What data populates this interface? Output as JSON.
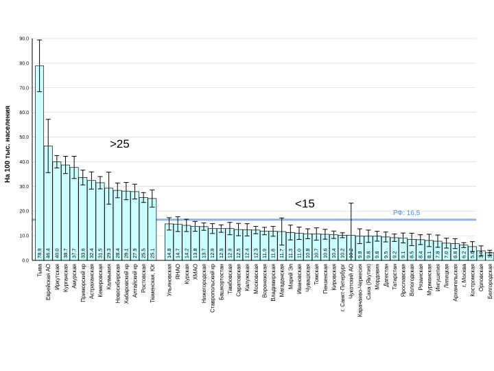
{
  "chart_data": {
    "type": "bar",
    "ylabel": "На 100 тыс. населения",
    "ylim": [
      0,
      90
    ],
    "yticks": [
      "0.0",
      "10.0",
      "20.0",
      "30.0",
      "40.0",
      "50.0",
      "60.0",
      "70.0",
      "80.0",
      "90.0"
    ],
    "grid": true,
    "bar_color": "#ccffff",
    "reference_line": {
      "value": 16.5,
      "label": "РФ: 16,5",
      "color": "#8fb4e0"
    },
    "annotations": [
      {
        "text": ">25",
        "near_value": 47
      },
      {
        "text": "<15",
        "near_value": 22
      }
    ],
    "groups": [
      {
        "categories": [
          "Тыва",
          "Еврейская АО",
          "Иркутская",
          "Курганская",
          "Амурская",
          "Приморский кр",
          "Астраханская",
          "Кемеровская",
          "Калмыкия",
          "Новосибирская",
          "Хабаровский кр",
          "Алтайский кр",
          "Ростовская",
          "Тюменская, Юг"
        ],
        "values": [
          78.9,
          46.4,
          40.0,
          38.7,
          37.7,
          33.6,
          32.4,
          31.5,
          29.3,
          28.4,
          28.1,
          27.9,
          25.5,
          25.1
        ],
        "value_labels": [
          "78.9",
          "46.4",
          "40.0",
          "38.7",
          "37.7",
          "33.6",
          "32.4",
          "31.5",
          "29.3",
          "28.4",
          "28.1",
          "27.9",
          "25.5",
          "25.1"
        ],
        "errors": [
          10.5,
          10.8,
          2.5,
          3.5,
          4.5,
          3.0,
          3.5,
          2.5,
          6.5,
          3.0,
          3.5,
          3.0,
          2.0,
          3.5
        ]
      },
      {
        "categories": [
          "Ульяновская",
          "ЯНАО",
          "Курская",
          "ХМАО",
          "Нижегородская",
          "Ставропольский кр",
          "Башкортостан",
          "Тамбовская",
          "Саратовская",
          "Калужская",
          "Московская",
          "Воронежская",
          "Владимирская",
          "Магаданская",
          "Марий Эл",
          "Ивановская",
          "Чувашская",
          "Томская",
          "Пензенская",
          "Кировская",
          "г. Санкт-Петербург",
          "Чукотский АО",
          "Карачаево-Черкесия",
          "Саха (Якутия)",
          "Мордовия",
          "Дагестан",
          "Татарстан",
          "Ярославская",
          "Вологодская",
          "Рязанская",
          "Мурманская",
          "Ингушетия",
          "Липецкая",
          "Архангельская",
          "г. Москва",
          "Костромская",
          "Орловская",
          "Белгородская"
        ],
        "values": [
          14.8,
          14.7,
          14.2,
          13.8,
          13.7,
          12.9,
          12.9,
          12.9,
          12.5,
          12.4,
          12.3,
          11.9,
          11.8,
          11.7,
          11.3,
          11.0,
          10.8,
          10.7,
          10.6,
          10.4,
          10.2,
          10.2,
          9.8,
          9.8,
          9.8,
          9.5,
          9.2,
          9.1,
          8.5,
          8.4,
          8.1,
          7.8,
          7.0,
          6.8,
          6.2,
          5.6,
          3.9,
          3.1
        ],
        "value_labels": [
          "14.8",
          "14.7",
          "14.2",
          "13.8",
          "13.7",
          "12.9",
          "12.9",
          "12.9",
          "12.5",
          "12.4",
          "12.3",
          "11.9",
          "11.8",
          "11.7",
          "11.3",
          "11.0",
          "10.8",
          "10.7",
          "10.6",
          "10.4",
          "10.2",
          "10.2",
          "9.8",
          "9.8",
          "9.8",
          "9.5",
          "9.2",
          "9.1",
          "8.5",
          "8.4",
          "8.1",
          "7.8",
          "7.0",
          "6.8",
          "6.2",
          "5.6",
          "3.9",
          "3.1"
        ],
        "errors": [
          2.5,
          3.0,
          2.5,
          2.0,
          1.5,
          2.0,
          1.5,
          2.5,
          2.5,
          2.5,
          1.5,
          1.5,
          2.0,
          5.5,
          3.0,
          2.5,
          2.0,
          2.5,
          2.0,
          1.5,
          1.0,
          13.0,
          3.0,
          2.5,
          2.0,
          2.0,
          1.5,
          2.0,
          2.5,
          2.0,
          2.5,
          2.5,
          2.0,
          2.0,
          1.0,
          2.0,
          2.0,
          1.0
        ]
      }
    ]
  }
}
